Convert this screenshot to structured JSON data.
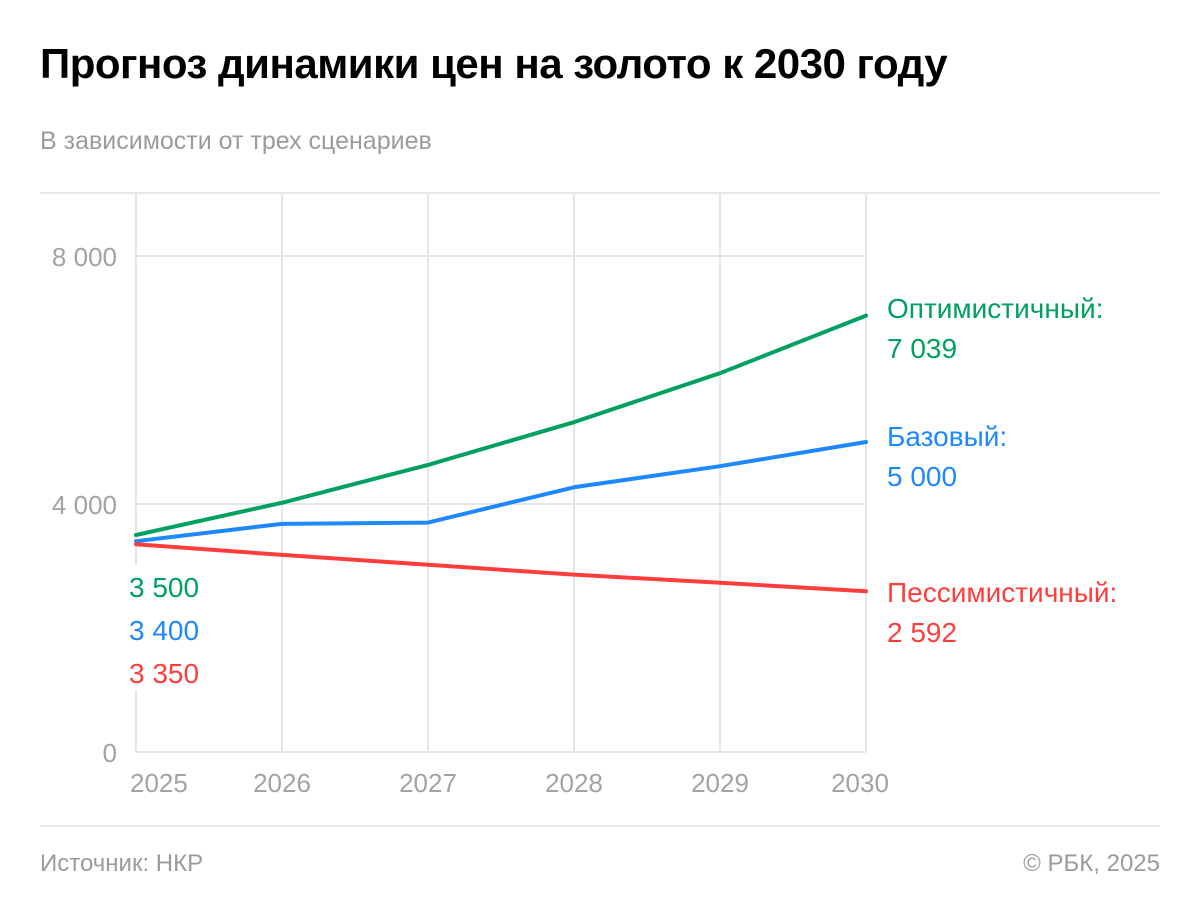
{
  "header": {
    "title": "Прогноз динамики цен на золото к 2030 году",
    "subtitle": "В зависимости от трех сценариев"
  },
  "footer": {
    "source": "Источник: НКР",
    "copyright": "© РБК, 2025"
  },
  "chart_data": {
    "type": "line",
    "title": "Прогноз динамики цен на золото к 2030 году",
    "subtitle": "В зависимости от трех сценариев",
    "xlabel": "",
    "ylabel": "",
    "x": [
      "2025",
      "2026",
      "2027",
      "2028",
      "2029",
      "2030"
    ],
    "ylim": [
      0,
      9000
    ],
    "yticks": [
      0,
      4000,
      8000
    ],
    "ytick_labels": [
      "0",
      "4 000",
      "8 000"
    ],
    "grid": true,
    "legend": "inline-right",
    "series": [
      {
        "name": "Оптимистичный",
        "color": "#00a060",
        "values": [
          3500,
          4020,
          4630,
          5320,
          6110,
          7039
        ],
        "start_label": "3 500",
        "end_label_name": "Оптимистичный:",
        "end_label_value": "7 039"
      },
      {
        "name": "Базовый",
        "color": "#1e88ff",
        "values": [
          3400,
          3680,
          3700,
          4270,
          4610,
          5000
        ],
        "start_label": "3 400",
        "end_label_name": "Базовый:",
        "end_label_value": "5 000"
      },
      {
        "name": "Пессимистичный",
        "color": "#ff3d3d",
        "values": [
          3350,
          3180,
          3020,
          2860,
          2730,
          2592
        ],
        "start_label": "3 350",
        "end_label_name": "Пессимистичный:",
        "end_label_value": "2 592"
      }
    ]
  }
}
